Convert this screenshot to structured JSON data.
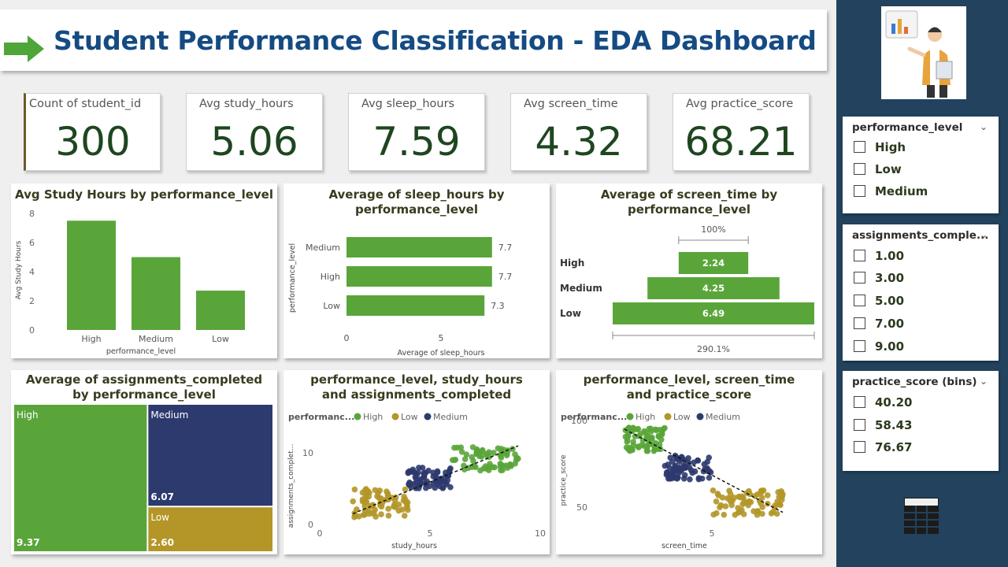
{
  "dashboard": {
    "title": "Student Performance Classification - EDA Dashboard"
  },
  "kpis": [
    {
      "label": "Count of student_id",
      "value": "300"
    },
    {
      "label": "Avg study_hours",
      "value": "5.06"
    },
    {
      "label": "Avg sleep_hours",
      "value": "7.59"
    },
    {
      "label": "Avg screen_time",
      "value": "4.32"
    },
    {
      "label": "Avg practice_score",
      "value": "68.21"
    }
  ],
  "colors": {
    "high": "#5aa53a",
    "medium": "#2d3a6e",
    "low": "#b39627",
    "title": "#154b82",
    "sidebar": "#23425d"
  },
  "slicers": {
    "performance_level": {
      "title": "performance_level",
      "items": [
        "High",
        "Low",
        "Medium"
      ]
    },
    "assignments": {
      "title": "assignments_comple...",
      "items": [
        "1.00",
        "3.00",
        "5.00",
        "7.00",
        "9.00"
      ]
    },
    "practice": {
      "title": "practice_score (bins)",
      "items": [
        "40.20",
        "58.43",
        "76.67"
      ]
    }
  },
  "chart_data": [
    {
      "type": "bar",
      "title": "Avg Study Hours by performance_level",
      "categories": [
        "High",
        "Medium",
        "Low"
      ],
      "values": [
        7.5,
        5.0,
        2.7
      ],
      "xlabel": "performance_level",
      "ylabel": "Avg Study Hours",
      "ylim": [
        0,
        8
      ],
      "yticks": [
        "0",
        "2",
        "4",
        "6",
        "8"
      ]
    },
    {
      "type": "bar",
      "orientation": "horizontal",
      "title": "Average of sleep_hours by performance_level",
      "categories": [
        "Medium",
        "High",
        "Low"
      ],
      "values": [
        7.7,
        7.7,
        7.3
      ],
      "data_labels": [
        "7.7",
        "7.7",
        "7.3"
      ],
      "xlabel": "Average of sleep_hours",
      "ylabel": "performance_level",
      "xticks": [
        "0",
        "5"
      ],
      "xlim": [
        0,
        10
      ]
    },
    {
      "type": "bar",
      "subtype": "funnel",
      "title": "Average of screen_time by performance_level",
      "categories": [
        "High",
        "Medium",
        "Low"
      ],
      "values": [
        2.24,
        4.25,
        6.49
      ],
      "data_labels": [
        "2.24",
        "4.25",
        "6.49"
      ],
      "top_label": "100%",
      "bottom_label": "290.1%"
    },
    {
      "type": "treemap",
      "title": "Average of assignments_completed by performance_level",
      "categories": [
        "High",
        "Medium",
        "Low"
      ],
      "values": [
        9.37,
        6.07,
        2.6
      ],
      "data_labels": [
        "9.37",
        "6.07",
        "2.60"
      ]
    },
    {
      "type": "scatter",
      "title": "performance_level, study_hours and assignments_completed",
      "legend_title": "performanc...",
      "legend": [
        "High",
        "Low",
        "Medium"
      ],
      "xlabel": "study_hours",
      "ylabel": "assignments_complet...",
      "xlim": [
        0,
        10
      ],
      "ylim": [
        0,
        13
      ],
      "xticks": [
        0,
        5,
        10
      ],
      "yticks": [
        0,
        10
      ],
      "clusters": [
        {
          "series": "Low",
          "x": [
            1.5,
            4
          ],
          "y": [
            1,
            5
          ]
        },
        {
          "series": "Medium",
          "x": [
            4,
            6
          ],
          "y": [
            5,
            8
          ]
        },
        {
          "series": "High",
          "x": [
            6,
            9
          ],
          "y": [
            7.5,
            11
          ]
        }
      ],
      "trendline": {
        "x": [
          1.5,
          9
        ],
        "y": [
          1.5,
          11
        ]
      }
    },
    {
      "type": "scatter",
      "title": "performance_level, screen_time and practice_score",
      "legend_title": "performanc...",
      "legend": [
        "High",
        "Low",
        "Medium"
      ],
      "xlabel": "screen_time",
      "ylabel": "practice_score",
      "xlim": [
        0,
        9
      ],
      "ylim": [
        40,
        100
      ],
      "xticks": [
        5
      ],
      "yticks": [
        50,
        100
      ],
      "clusters": [
        {
          "series": "High",
          "x": [
            1.3,
            3
          ],
          "y": [
            82,
            96
          ]
        },
        {
          "series": "Medium",
          "x": [
            3,
            5
          ],
          "y": [
            66,
            80
          ]
        },
        {
          "series": "Low",
          "x": [
            5,
            8
          ],
          "y": [
            45,
            60
          ]
        }
      ],
      "trendline": {
        "x": [
          1.3,
          8
        ],
        "y": [
          95,
          47
        ]
      }
    }
  ]
}
